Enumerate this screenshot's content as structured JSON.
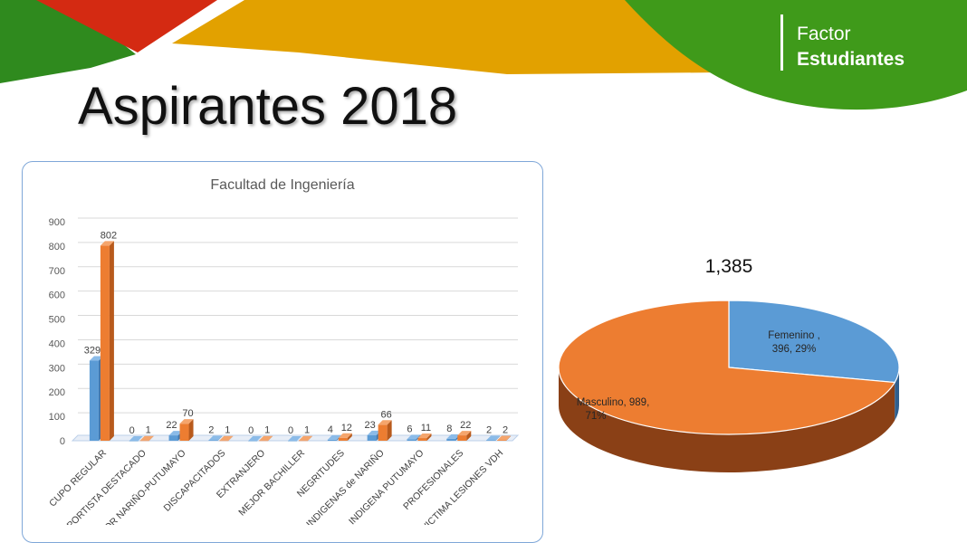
{
  "slide": {
    "title": "Aspirantes 2018",
    "logo": {
      "line1": "Factor",
      "line2": "Estudiantes"
    }
  },
  "colors": {
    "banner_green": "#2f8a1e",
    "banner_red": "#d42a12",
    "banner_yellow": "#e2a100",
    "series_blue": "#5b9bd5",
    "series_orange": "#ed7d31"
  },
  "chart_data": [
    {
      "type": "bar",
      "title": "Facultad de Ingeniería",
      "categories": [
        "CUPO REGULAR",
        "DEPORTISTA DESTACADO",
        "MEJOR NARIÑO-PUTUMAYO",
        "DISCAPACITADOS",
        "EXTRANJERO",
        "MEJOR BACHILLER",
        "NEGRITUDES",
        "INDIGENAS de NARIÑO",
        "INDIGENA PUTUMAYO",
        "PROFESIONALES",
        "VICTIMA LESIONES VDH"
      ],
      "series": [
        {
          "values": [
            329,
            0,
            22,
            2,
            0,
            0,
            4,
            23,
            6,
            8,
            2
          ]
        },
        {
          "values": [
            802,
            1,
            70,
            1,
            1,
            1,
            12,
            66,
            11,
            22,
            2
          ]
        }
      ],
      "ylim": [
        0,
        900
      ],
      "yticks": [
        "0",
        "100",
        "200",
        "300",
        "400",
        "500",
        "600",
        "700",
        "800",
        "900"
      ],
      "grid": true,
      "legend": "none",
      "three_d": true
    },
    {
      "type": "pie",
      "title": "1,385",
      "labels": [
        "Femenino",
        "Masculino"
      ],
      "values": [
        396,
        989
      ],
      "percent_labels": [
        "29%",
        "71%"
      ],
      "slice_labels": [
        "Femenino , 396, 29%",
        "Masculino, 989, 71%"
      ],
      "three_d": true
    }
  ]
}
